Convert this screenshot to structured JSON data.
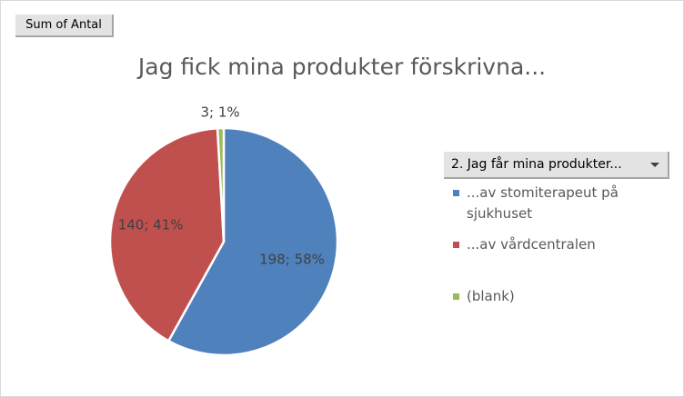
{
  "field_button": {
    "label": "Sum of Antal"
  },
  "chart_data": {
    "type": "pie",
    "title": "Jag fick mina produkter förskrivna...",
    "categories": [
      "...av stomiterapeut på sjukhuset",
      "...av vårdcentralen",
      "(blank)"
    ],
    "values": [
      198,
      140,
      3
    ],
    "percent_labels": [
      "58%",
      "41%",
      "1%"
    ],
    "data_labels": [
      "198; 58%",
      "140; 41%",
      "3; 1%"
    ],
    "colors": [
      "#4f81bd",
      "#c0504d",
      "#9bbb59"
    ],
    "legend_title": "2. Jag får mina produkter...",
    "legend_position": "right"
  }
}
